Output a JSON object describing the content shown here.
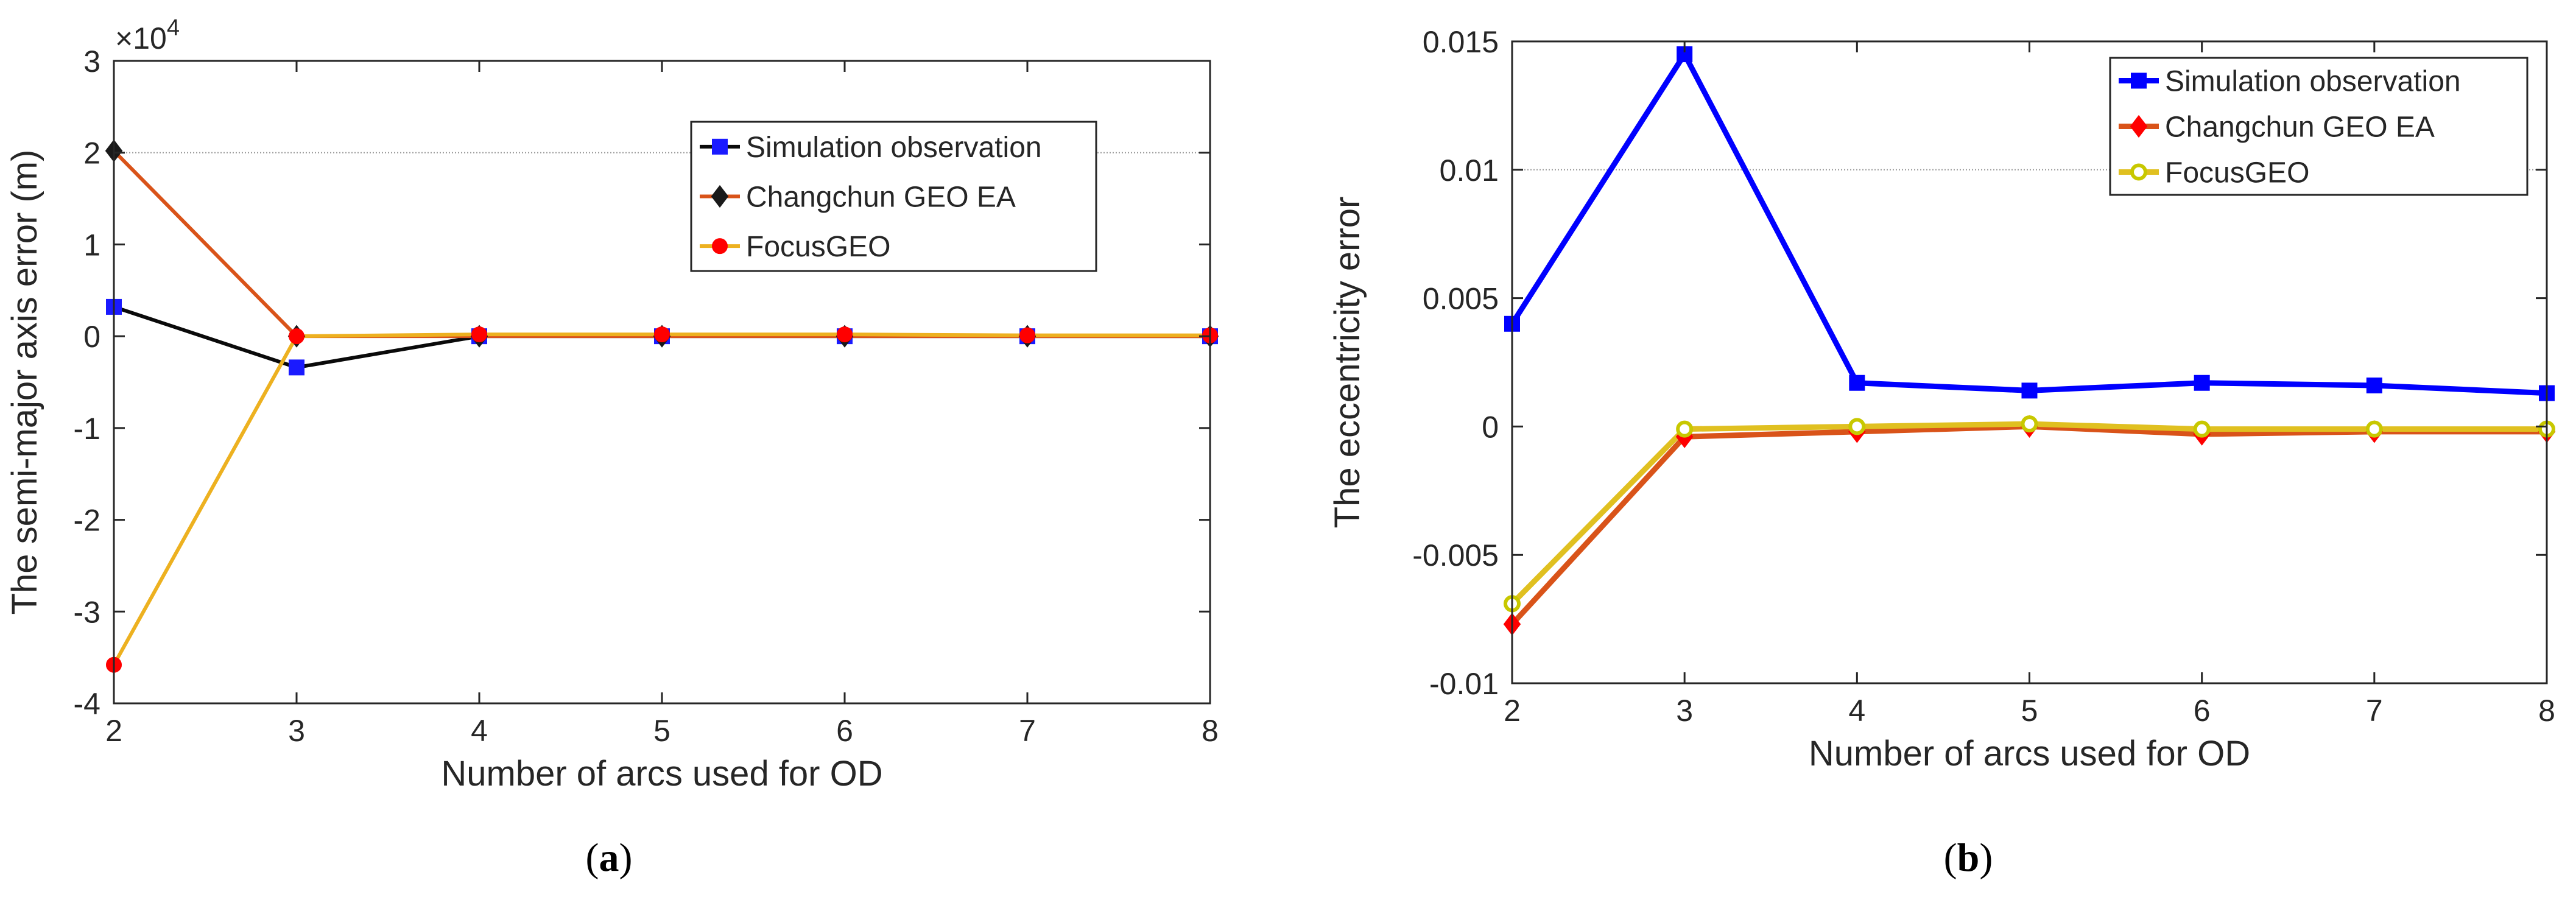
{
  "colors": {
    "axis": "#262626",
    "background": "#ffffff",
    "gridline": "#9a9a9a"
  },
  "chart_data": [
    {
      "panel": "a",
      "caption": {
        "open": "(",
        "letter": "a",
        "close": ")"
      },
      "type": "line",
      "title": "",
      "xlabel": "Number of arcs used for OD",
      "ylabel": "The semi-major axis error (m)",
      "x": [
        2,
        3,
        4,
        5,
        6,
        7,
        8
      ],
      "xlim": [
        2,
        8
      ],
      "xticks": [
        "2",
        "3",
        "4",
        "5",
        "6",
        "7",
        "8"
      ],
      "ylim": [
        -4,
        3
      ],
      "yticks": [
        {
          "value": 3,
          "label": "3"
        },
        {
          "value": 2,
          "label": "2"
        },
        {
          "value": 1,
          "label": "1"
        },
        {
          "value": 0,
          "label": "0"
        },
        {
          "value": -1,
          "label": "-1"
        },
        {
          "value": -2,
          "label": "-2"
        },
        {
          "value": -3,
          "label": "-3"
        },
        {
          "value": -4,
          "label": "-4"
        }
      ],
      "exponent": {
        "base": "×10",
        "power": "4"
      },
      "reference_line": 2,
      "legend_position": "top-right",
      "series": [
        {
          "name": "Simulation observation",
          "color": "#0a0a0a",
          "marker": "square",
          "marker_color": "#1a1aff",
          "marker_edge": "#1a1aff",
          "values": [
            0.32,
            -0.34,
            0.0,
            0.0,
            0.0,
            0.0,
            0.0
          ]
        },
        {
          "name": "Changchun GEO EA",
          "color": "#d95319",
          "marker": "diamond",
          "marker_color": "#1a1a1a",
          "marker_edge": "#1a1a1a",
          "values": [
            2.02,
            0.0,
            0.0,
            0.0,
            0.0,
            0.0,
            0.0
          ]
        },
        {
          "name": "FocusGEO",
          "color": "#edb120",
          "marker": "circle",
          "marker_color": "#ff0000",
          "marker_edge": "#ff0000",
          "values": [
            -3.58,
            0.0,
            0.02,
            0.02,
            0.02,
            0.01,
            0.01
          ]
        }
      ]
    },
    {
      "panel": "b",
      "caption": {
        "open": "(",
        "letter": "b",
        "close": ")"
      },
      "type": "line",
      "title": "",
      "xlabel": "Number of arcs used for OD",
      "ylabel": "The eccentricity error",
      "x": [
        2,
        3,
        4,
        5,
        6,
        7,
        8
      ],
      "xlim": [
        2,
        8
      ],
      "xticks": [
        "2",
        "3",
        "4",
        "5",
        "6",
        "7",
        "8"
      ],
      "ylim": [
        -0.01,
        0.015
      ],
      "yticks": [
        {
          "value": 0.015,
          "label": "0.015"
        },
        {
          "value": 0.01,
          "label": "0.01"
        },
        {
          "value": 0.005,
          "label": "0.005"
        },
        {
          "value": 0,
          "label": "0"
        },
        {
          "value": -0.005,
          "label": "-0.005"
        },
        {
          "value": -0.01,
          "label": "-0.01"
        }
      ],
      "reference_line": 0.01,
      "legend_position": "top-right",
      "series": [
        {
          "name": "Simulation observation",
          "color": "#0000ff",
          "marker": "square",
          "marker_color": "#0000ff",
          "marker_edge": "#0000ff",
          "values": [
            0.004,
            0.0145,
            0.0017,
            0.0014,
            0.0017,
            0.0016,
            0.0013
          ]
        },
        {
          "name": "Changchun GEO EA",
          "color": "#d95319",
          "marker": "diamond",
          "marker_color": "#ff0000",
          "marker_edge": "#ff0000",
          "values": [
            -0.0077,
            -0.0004,
            -0.0002,
            0.0,
            -0.0003,
            -0.0002,
            -0.0002
          ]
        },
        {
          "name": "FocusGEO",
          "color": "#e0c020",
          "marker": "circle-open",
          "marker_color": "#ffffff",
          "marker_edge": "#c8c800",
          "values": [
            -0.0069,
            -0.0001,
            0.0,
            0.0001,
            -0.0001,
            -0.0001,
            -0.0001
          ]
        }
      ]
    }
  ]
}
